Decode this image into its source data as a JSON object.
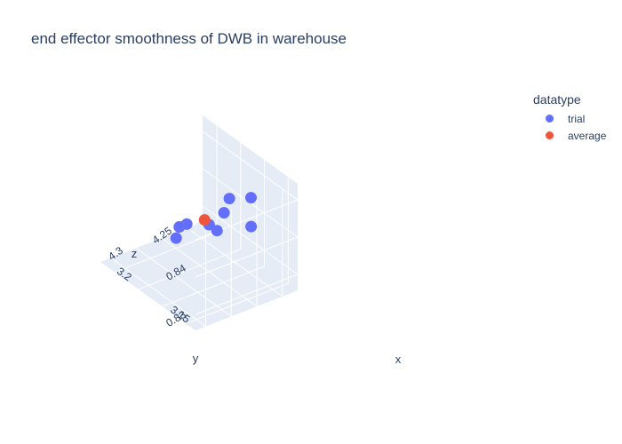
{
  "chart_data": {
    "type": "scatter",
    "subtype": "scatter3d",
    "title": "end effector smoothness of DWB in warehouse",
    "xlabel": "x",
    "ylabel": "y",
    "zlabel": "z",
    "x_ticks": [
      "3.15",
      "3.2"
    ],
    "y_ticks": [
      "4.25",
      "4.3"
    ],
    "z_ticks": [
      "0.83",
      "0.84"
    ],
    "xlim": [
      3.125,
      3.21
    ],
    "ylim": [
      4.22,
      4.33
    ],
    "zlim": [
      0.827,
      0.85
    ],
    "grid": true,
    "legend_title": "datatype",
    "legend_position": "top-right",
    "series": [
      {
        "name": "trial",
        "color": "#636efa",
        "points": [
          {
            "x": 3.136,
            "y": 4.257,
            "z": 0.848
          },
          {
            "x": 3.157,
            "y": 4.255,
            "z": 0.844
          },
          {
            "x": 3.151,
            "y": 4.268,
            "z": 0.843
          },
          {
            "x": 3.161,
            "y": 4.272,
            "z": 0.839
          },
          {
            "x": 3.176,
            "y": 4.278,
            "z": 0.837
          },
          {
            "x": 3.183,
            "y": 4.281,
            "z": 0.833
          },
          {
            "x": 3.191,
            "y": 4.268,
            "z": 0.833
          },
          {
            "x": 3.178,
            "y": 4.243,
            "z": 0.8325
          },
          {
            "x": 3.15,
            "y": 4.24,
            "z": 0.838
          }
        ]
      },
      {
        "name": "average",
        "color": "#ef553b",
        "points": [
          {
            "x": 3.17,
            "y": 4.266,
            "z": 0.838
          }
        ]
      }
    ]
  }
}
